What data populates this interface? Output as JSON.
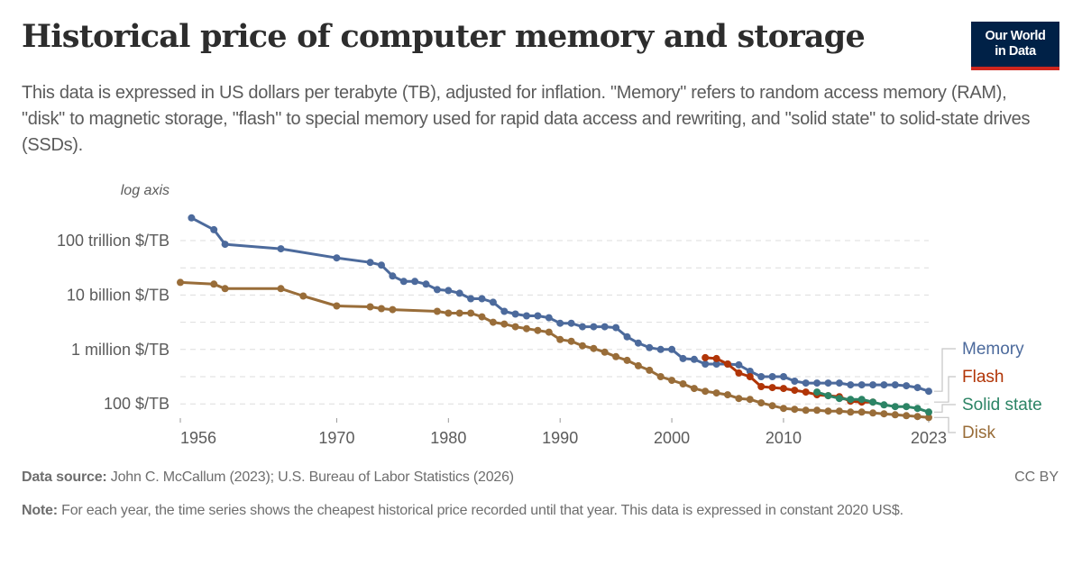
{
  "header": {
    "title": "Historical price of computer memory and storage",
    "subtitle": "This data is expressed in US dollars per terabyte (TB), adjusted for inflation. \"Memory\" refers to random access memory (RAM), \"disk\" to magnetic storage, \"flash\" to special memory used for rapid data access and rewriting, and \"solid state\" to solid-state drives (SSDs).",
    "logo_line1": "Our World",
    "logo_line2": "in Data"
  },
  "footer": {
    "source_label": "Data source:",
    "source_text": " John C. McCallum (2023); U.S. Bureau of Labor Statistics (2026)",
    "note_label": "Note:",
    "note_text": " For each year, the time series shows the cheapest historical price recorded until that year. This data is expressed in constant 2020 US$.",
    "license": "CC BY"
  },
  "colors": {
    "memory": "#4c6a9c",
    "flash": "#b13507",
    "solid_state": "#2c8465",
    "disk": "#996d39",
    "grid": "#dddddd",
    "axis_text": "#5b5b5b"
  },
  "chart_data": {
    "type": "line",
    "title": "Historical price of computer memory and storage",
    "xlabel": "",
    "ylabel": "US$ per terabyte",
    "y_scale": "log",
    "y_scale_label": "log axis",
    "xlim": [
      1956,
      2023
    ],
    "ylim_log10": [
      0.6,
      15.9
    ],
    "x_ticks": [
      1956,
      1970,
      1980,
      1990,
      2000,
      2010,
      2023
    ],
    "y_ticks": [
      {
        "log10": 14,
        "label": "100 trillion $/TB"
      },
      {
        "log10": 10,
        "label": "10 billion $/TB"
      },
      {
        "log10": 6,
        "label": "1 million $/TB"
      },
      {
        "log10": 2,
        "label": "100 $/TB"
      }
    ],
    "y_minor_gridlines_log10": [
      12,
      8,
      4
    ],
    "grid": true,
    "legend": "right",
    "series": [
      {
        "name": "Memory",
        "color_key": "memory",
        "x": [
          1957,
          1959,
          1960,
          1965,
          1970,
          1973,
          1974,
          1975,
          1976,
          1977,
          1978,
          1979,
          1980,
          1981,
          1982,
          1983,
          1984,
          1985,
          1986,
          1987,
          1988,
          1989,
          1990,
          1991,
          1992,
          1993,
          1994,
          1995,
          1996,
          1997,
          1998,
          1999,
          2000,
          2001,
          2002,
          2003,
          2004,
          2005,
          2006,
          2007,
          2008,
          2009,
          2010,
          2011,
          2012,
          2013,
          2014,
          2015,
          2016,
          2017,
          2018,
          2019,
          2020,
          2021,
          2022,
          2023
        ],
        "log10_values": [
          15.67,
          14.8,
          13.73,
          13.4,
          12.73,
          12.4,
          12.2,
          11.4,
          11.0,
          11.0,
          10.8,
          10.4,
          10.33,
          10.13,
          9.73,
          9.73,
          9.47,
          8.8,
          8.6,
          8.47,
          8.47,
          8.33,
          7.93,
          7.93,
          7.67,
          7.67,
          7.67,
          7.6,
          6.93,
          6.47,
          6.13,
          6.0,
          6.0,
          5.33,
          5.27,
          4.93,
          4.93,
          4.93,
          4.87,
          4.4,
          4.0,
          4.0,
          4.0,
          3.67,
          3.53,
          3.53,
          3.53,
          3.53,
          3.4,
          3.4,
          3.4,
          3.4,
          3.4,
          3.33,
          3.2,
          2.93
        ]
      },
      {
        "name": "Flash",
        "color_key": "flash",
        "x": [
          2003,
          2004,
          2005,
          2006,
          2007,
          2008,
          2009,
          2010,
          2011,
          2012,
          2013,
          2014,
          2015,
          2016,
          2017,
          2018
        ],
        "log10_values": [
          5.4,
          5.33,
          4.93,
          4.27,
          4.0,
          3.27,
          3.2,
          3.13,
          3.0,
          2.87,
          2.67,
          2.6,
          2.53,
          2.2,
          2.13,
          2.13
        ]
      },
      {
        "name": "Solid state",
        "color_key": "solid_state",
        "x": [
          2013,
          2014,
          2015,
          2016,
          2017,
          2018,
          2019,
          2020,
          2021,
          2022,
          2023
        ],
        "log10_values": [
          2.87,
          2.6,
          2.4,
          2.33,
          2.33,
          2.13,
          1.93,
          1.8,
          1.8,
          1.67,
          1.4
        ]
      },
      {
        "name": "Disk",
        "color_key": "disk",
        "x": [
          1956,
          1959,
          1960,
          1965,
          1967,
          1970,
          1973,
          1974,
          1975,
          1979,
          1980,
          1981,
          1982,
          1983,
          1984,
          1985,
          1986,
          1987,
          1988,
          1989,
          1990,
          1991,
          1992,
          1993,
          1994,
          1995,
          1996,
          1997,
          1998,
          1999,
          2000,
          2001,
          2002,
          2003,
          2004,
          2005,
          2006,
          2007,
          2008,
          2009,
          2010,
          2011,
          2012,
          2013,
          2014,
          2015,
          2016,
          2017,
          2018,
          2019,
          2020,
          2021,
          2022,
          2023
        ],
        "log10_values": [
          10.93,
          10.8,
          10.47,
          10.47,
          9.93,
          9.2,
          9.13,
          9.0,
          8.93,
          8.8,
          8.67,
          8.67,
          8.67,
          8.4,
          8.0,
          7.87,
          7.67,
          7.53,
          7.4,
          7.27,
          6.73,
          6.6,
          6.27,
          6.07,
          5.8,
          5.47,
          5.2,
          4.8,
          4.47,
          4.0,
          3.73,
          3.47,
          3.13,
          2.93,
          2.8,
          2.67,
          2.4,
          2.33,
          2.07,
          1.87,
          1.67,
          1.6,
          1.53,
          1.53,
          1.47,
          1.47,
          1.4,
          1.4,
          1.33,
          1.27,
          1.2,
          1.13,
          1.07,
          1.0
        ]
      }
    ]
  }
}
